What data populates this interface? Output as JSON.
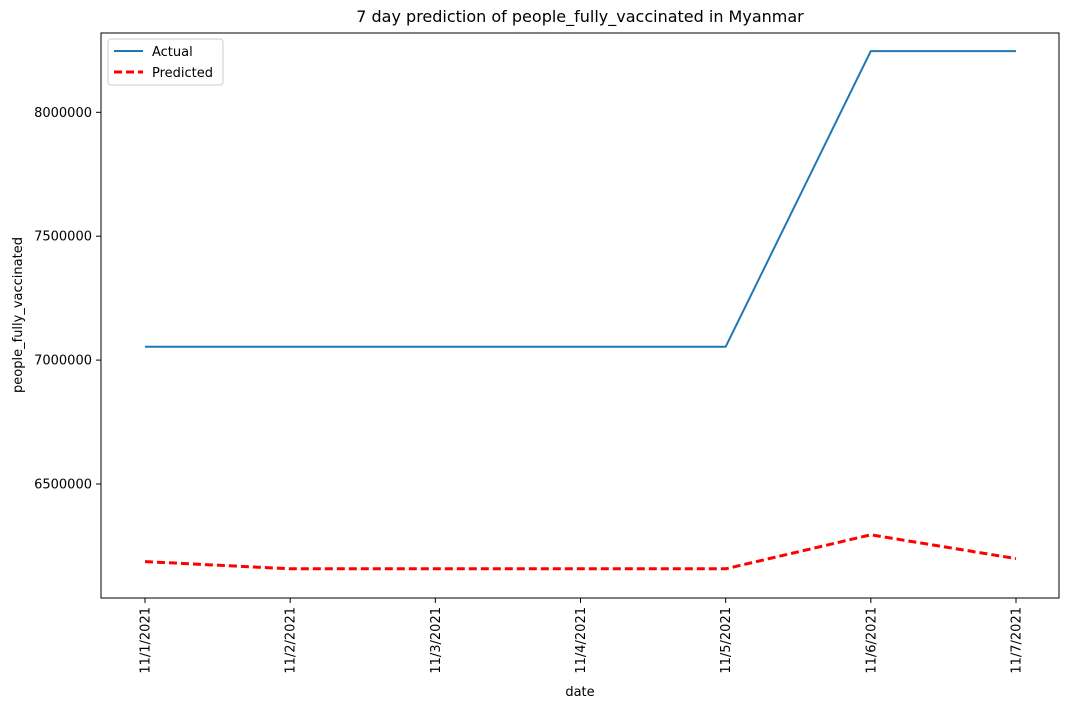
{
  "chart_data": {
    "type": "line",
    "title": "7 day prediction of people_fully_vaccinated in Myanmar",
    "xlabel": "date",
    "ylabel": "people_fully_vaccinated",
    "categories": [
      "11/1/2021",
      "11/2/2021",
      "11/3/2021",
      "11/4/2021",
      "11/5/2021",
      "11/6/2021",
      "11/7/2021"
    ],
    "ylim": [
      6040000,
      8320000
    ],
    "yticks": [
      "6500000",
      "7000000",
      "7500000",
      "8000000"
    ],
    "legend_position": "top-left",
    "grid": false,
    "series": [
      {
        "name": "Actual",
        "color": "#1f77b4",
        "style": "solid",
        "values": [
          7054000,
          7054000,
          7054000,
          7054000,
          7054000,
          8247000,
          8247000
        ]
      },
      {
        "name": "Predicted",
        "color": "#ff0000",
        "style": "dashed",
        "values": [
          6187000,
          6158000,
          6158000,
          6158000,
          6158000,
          6295000,
          6199000
        ]
      }
    ]
  }
}
